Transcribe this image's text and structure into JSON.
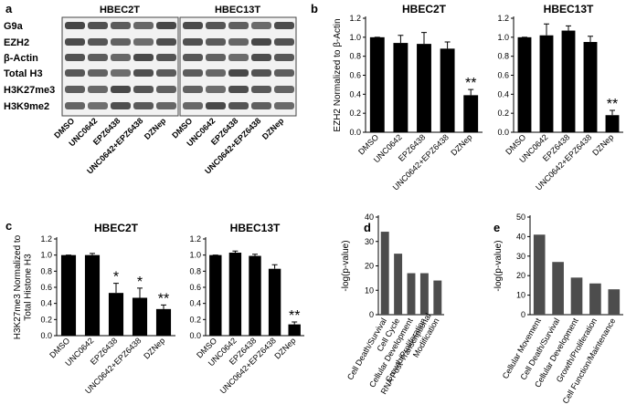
{
  "panel_a": {
    "label": "a",
    "columns": [
      "HBEC2T",
      "HBEC13T"
    ],
    "rows": [
      "G9a",
      "EZH2",
      "β-Actin",
      "Total H3",
      "H3K27me3",
      "H3K9me2"
    ],
    "lanes": [
      "DMSO",
      "UNC0642",
      "EPZ6438",
      "UNC0642+EPZ6438",
      "DZNep"
    ]
  },
  "chart_data": [
    {
      "type": "bar",
      "panel": "b",
      "title": "HBEC2T",
      "ylabel": "EZH2 Normalized to β-Actin",
      "categories": [
        "DMSO",
        "UNC0642",
        "EPZ6438",
        "UNC0642+EPZ6438",
        "DZNep"
      ],
      "values": [
        1.0,
        0.94,
        0.93,
        0.88,
        0.39
      ],
      "errors": [
        0,
        0.08,
        0.12,
        0.07,
        0.06
      ],
      "significance": [
        null,
        null,
        null,
        null,
        "**"
      ],
      "color": "#000000",
      "ylim": [
        0,
        1.2
      ],
      "yticks": [
        {
          "value": 0,
          "label": "0.0"
        },
        0.2,
        0.4,
        0.6,
        0.8,
        {
          "value": 1,
          "label": "1.0"
        },
        1.2
      ]
    },
    {
      "type": "bar",
      "title": "HBEC13T",
      "categories": [
        "DMSO",
        "UNC0642",
        "EPZ6438",
        "UNC0642+EPZ6438",
        "DZNep"
      ],
      "values": [
        1.0,
        1.02,
        1.07,
        0.95,
        0.18
      ],
      "errors": [
        0,
        0.12,
        0.05,
        0.06,
        0.05
      ],
      "significance": [
        null,
        null,
        null,
        null,
        "**"
      ],
      "color": "#000000",
      "ylim": [
        0,
        1.2
      ],
      "yticks": [
        {
          "value": 0,
          "label": "0.0"
        },
        0.2,
        0.4,
        0.6,
        0.8,
        {
          "value": 1,
          "label": "1.0"
        },
        1.2
      ]
    },
    {
      "type": "bar",
      "panel": "c",
      "title": "HBEC2T",
      "ylabel": "H3K27me3 Normalized to Total Histone H3",
      "categories": [
        "DMSO",
        "UNC0642",
        "EPZ6438",
        "UNC0642+EPZ6438",
        "DZNep"
      ],
      "values": [
        1.0,
        1.0,
        0.53,
        0.47,
        0.33
      ],
      "errors": [
        0,
        0.02,
        0.12,
        0.12,
        0.05
      ],
      "significance": [
        null,
        null,
        "*",
        "*",
        "**"
      ],
      "color": "#000000",
      "ylim": [
        0,
        1.2
      ],
      "yticks": [
        {
          "value": 0,
          "label": "0.0"
        },
        0.2,
        0.4,
        0.6,
        0.8,
        {
          "value": 1,
          "label": "1.0"
        },
        1.2
      ]
    },
    {
      "type": "bar",
      "title": "HBEC13T",
      "categories": [
        "DMSO",
        "UNC0642",
        "EPZ6438",
        "UNC0642+EPZ6438",
        "DZNep"
      ],
      "values": [
        1.0,
        1.03,
        0.99,
        0.83,
        0.14
      ],
      "errors": [
        0,
        0.02,
        0.02,
        0.05,
        0.03
      ],
      "significance": [
        null,
        null,
        null,
        null,
        "**"
      ],
      "color": "#000000",
      "ylim": [
        0,
        1.2
      ],
      "yticks": [
        {
          "value": 0,
          "label": "0.0"
        },
        0.2,
        0.4,
        0.6,
        0.8,
        {
          "value": 1,
          "label": "1.0"
        },
        1.2
      ]
    },
    {
      "type": "bar",
      "panel": "d",
      "ylabel": "-log(p-value)",
      "categories": [
        "Cell Death/Survival",
        "Cell Cycle",
        "Cellular Development",
        "Growth/Proliferation",
        "RNA Post-Transcriptional Modification"
      ],
      "values": [
        34,
        25,
        17,
        17,
        14
      ],
      "color": "#4d4d4d",
      "ylim": [
        0,
        40
      ],
      "yticks": [
        0,
        10,
        20,
        30,
        40
      ]
    },
    {
      "type": "bar",
      "panel": "e",
      "ylabel": "-log(p-value)",
      "categories": [
        "Cellular Movement",
        "Cell Death/Survival",
        "Cellular Development",
        "Growth/Proliferation",
        "Cell Function/Maintenance"
      ],
      "values": [
        41,
        27,
        19,
        16,
        13
      ],
      "color": "#4d4d4d",
      "ylim": [
        0,
        50
      ],
      "yticks": [
        0,
        10,
        20,
        30,
        40,
        50
      ]
    }
  ]
}
